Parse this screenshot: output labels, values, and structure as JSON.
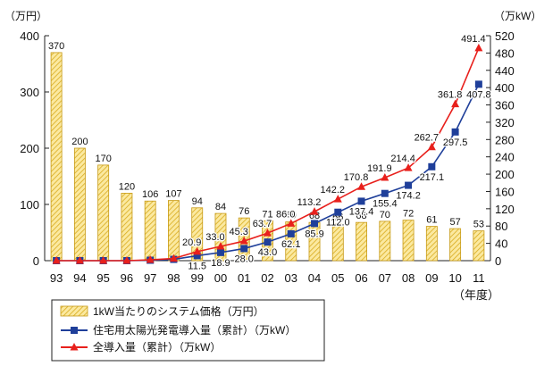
{
  "chart_data": {
    "type": "bar",
    "categories": [
      "93",
      "94",
      "95",
      "96",
      "97",
      "98",
      "99",
      "00",
      "01",
      "02",
      "03",
      "04",
      "05",
      "06",
      "07",
      "08",
      "09",
      "10",
      "11"
    ],
    "x_unit_label": "（年度）",
    "left_axis": {
      "unit_label": "（万円）",
      "range": [
        0,
        400
      ],
      "ticks": [
        "0",
        "100",
        "200",
        "300",
        "400"
      ]
    },
    "right_axis": {
      "unit_label": "（万kW）",
      "range": [
        0,
        520
      ],
      "ticks": [
        "0",
        "40",
        "80",
        "120",
        "160",
        "200",
        "240",
        "280",
        "320",
        "360",
        "400",
        "440",
        "480",
        "520"
      ]
    },
    "series": [
      {
        "name": "1kW当たりのシステム価格（万円）",
        "type": "bar",
        "axis": "left",
        "color": "#f2d24a",
        "values": [
          370,
          200,
          170,
          120,
          106,
          107,
          94,
          84,
          76,
          71,
          69,
          68,
          66,
          68,
          70,
          72,
          61,
          57,
          53
        ],
        "labels": [
          "370",
          "200",
          "170",
          "120",
          "106",
          "107",
          "94",
          "84",
          "76",
          "71",
          "69",
          "68",
          "66",
          "68",
          "70",
          "72",
          "61",
          "57",
          "53"
        ]
      },
      {
        "name": "住宅用太陽光発電導入量（累計）（万kW）",
        "type": "line",
        "axis": "right",
        "color": "#1f3f9a",
        "marker": "square",
        "values": [
          0,
          0,
          0,
          0,
          1,
          3,
          11.5,
          18.9,
          28.0,
          43.0,
          62.1,
          85.9,
          112.0,
          137.4,
          155.4,
          174.2,
          217.1,
          297.5,
          407.8
        ],
        "labels": [
          "",
          "",
          "",
          "",
          "",
          "",
          "11.5",
          "18.9",
          "28.0",
          "43.0",
          "62.1",
          "85.9",
          "112.0",
          "137.4",
          "155.4",
          "174.2",
          "217.1",
          "297.5",
          "407.8"
        ]
      },
      {
        "name": "全導入量（累計）（万kW）",
        "type": "line",
        "axis": "right",
        "color": "#e8201c",
        "marker": "triangle",
        "values": [
          0,
          0,
          0,
          0,
          2,
          5,
          20.9,
          33.0,
          45.3,
          63.7,
          86.0,
          113.2,
          142.2,
          170.8,
          191.9,
          214.4,
          262.7,
          361.8,
          491.4
        ],
        "labels": [
          "",
          "",
          "",
          "",
          "",
          "",
          "20.9",
          "33.0",
          "45.3",
          "63.7",
          "86.0",
          "113.2",
          "142.2",
          "170.8",
          "191.9",
          "214.4",
          "262.7",
          "361.8",
          "491.4"
        ]
      }
    ],
    "grid": false,
    "legend_position": "bottom-left"
  }
}
